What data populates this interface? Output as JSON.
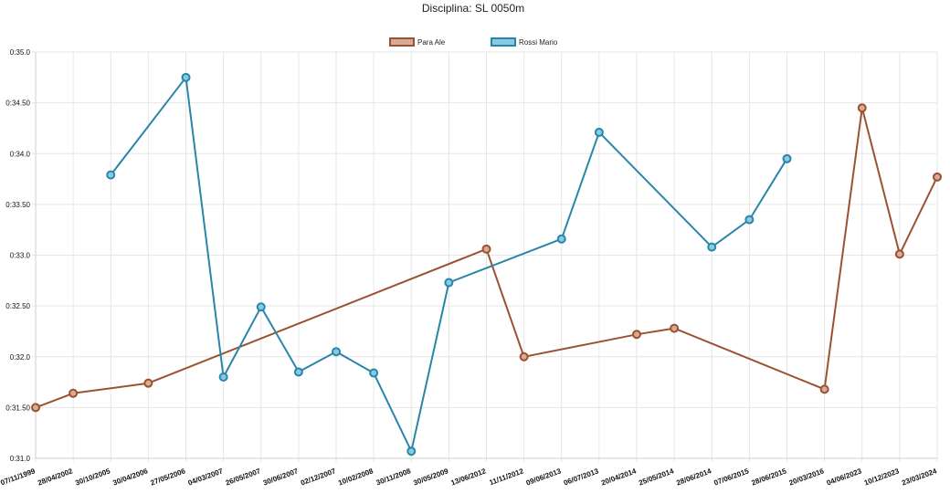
{
  "chart_data": {
    "type": "line",
    "title": "Disciplina: SL 0050m",
    "categories": [
      "07/11/1999",
      "28/04/2002",
      "30/10/2005",
      "30/04/2006",
      "27/05/2006",
      "04/03/2007",
      "26/05/2007",
      "30/06/2007",
      "02/12/2007",
      "10/02/2008",
      "30/11/2008",
      "30/05/2009",
      "13/06/2012",
      "11/11/2012",
      "09/06/2013",
      "06/07/2013",
      "20/04/2014",
      "25/05/2014",
      "28/06/2014",
      "07/06/2015",
      "28/06/2015",
      "20/03/2016",
      "04/06/2023",
      "10/12/2023",
      "23/03/2024"
    ],
    "y_tick_labels": [
      "0:31.0",
      "0:31.50",
      "0:32.0",
      "0:32.50",
      "0:33.0",
      "0:33.50",
      "0:34.0",
      "0:34.50",
      "0:35.0"
    ],
    "ylim": [
      31.0,
      35.0
    ],
    "grid": true,
    "legend_position": "top-center",
    "series": [
      {
        "name": "Para  Ale",
        "color": "#9a5232",
        "fill": "#d9aa94",
        "values": [
          31.5,
          31.64,
          null,
          31.74,
          null,
          null,
          null,
          null,
          null,
          null,
          null,
          null,
          33.06,
          32.0,
          null,
          null,
          32.22,
          32.28,
          null,
          null,
          null,
          31.68,
          34.45,
          33.01,
          33.77
        ]
      },
      {
        "name": "Rossi Mario",
        "color": "#2a86a8",
        "fill": "#86cbe6",
        "values": [
          null,
          null,
          33.79,
          null,
          34.75,
          31.8,
          32.49,
          31.85,
          32.05,
          31.84,
          31.07,
          32.73,
          null,
          null,
          33.16,
          34.21,
          null,
          null,
          33.08,
          33.35,
          33.95,
          null,
          null,
          null,
          null
        ]
      }
    ]
  }
}
